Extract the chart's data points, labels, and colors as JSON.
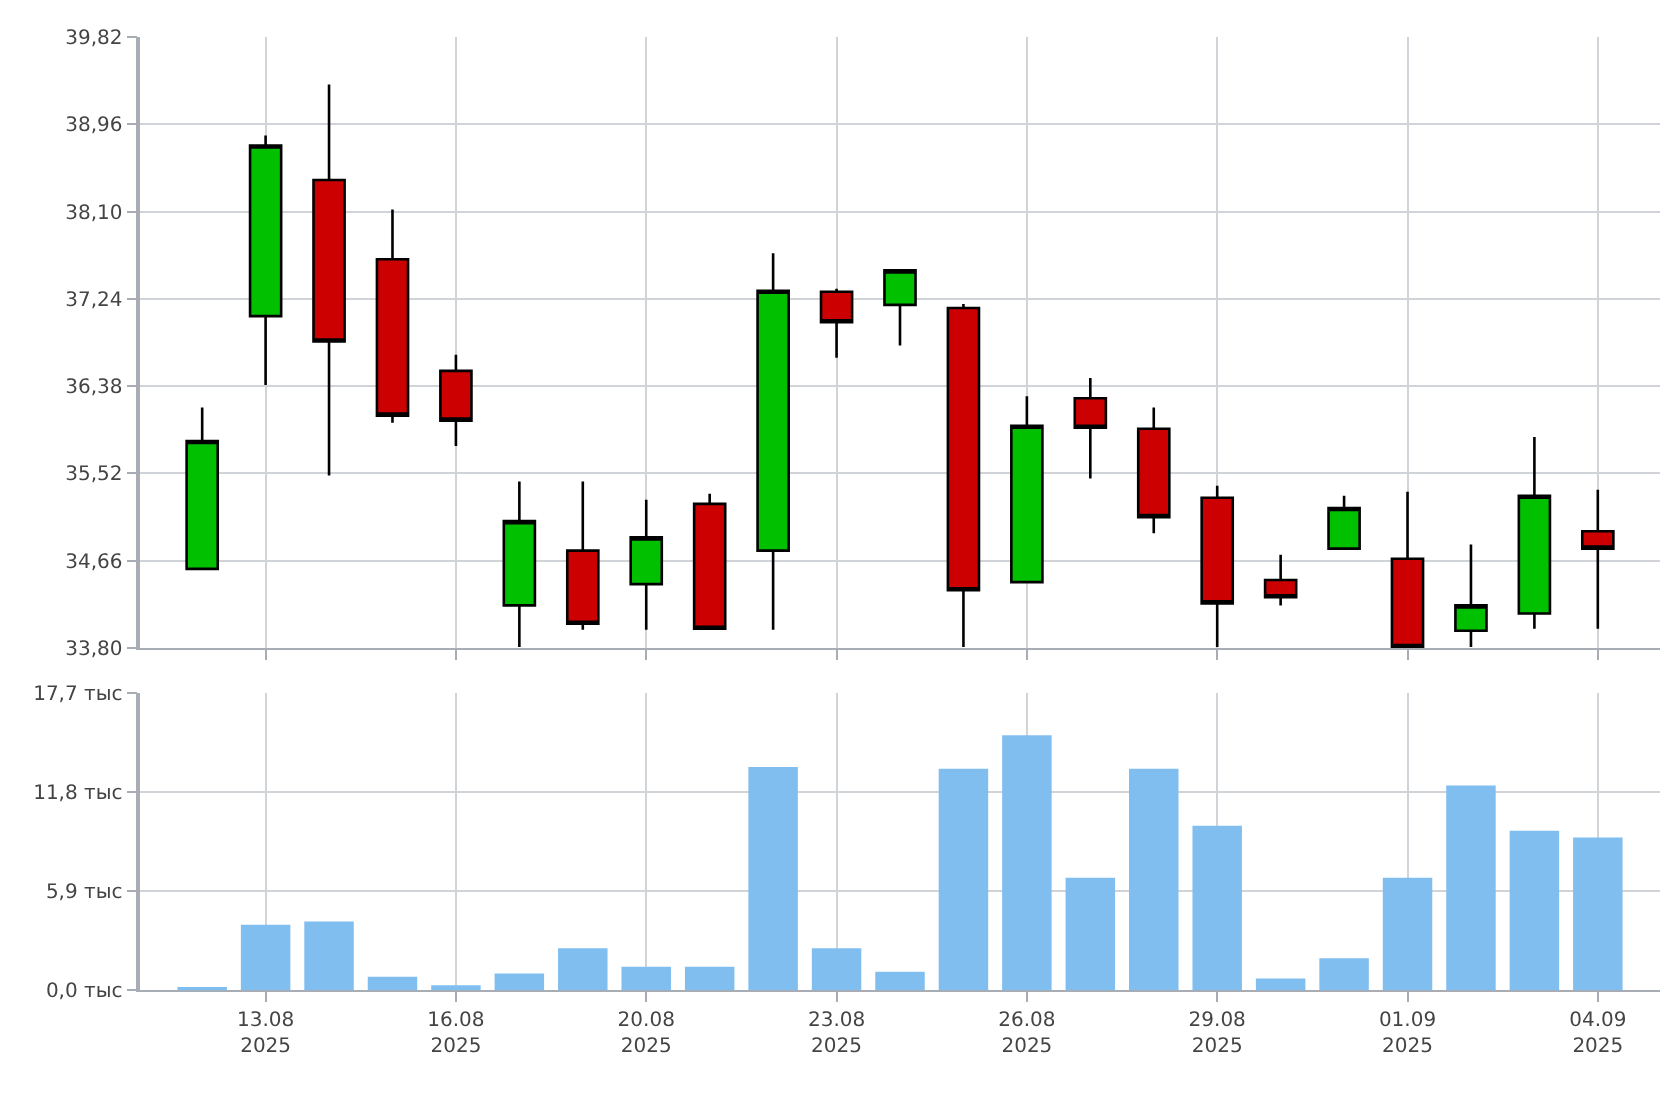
{
  "chart_data": [
    {
      "type": "candlestick",
      "ohlc": [
        [
          34.58,
          36.17,
          34.58,
          35.84
        ],
        [
          37.07,
          38.85,
          36.39,
          38.75
        ],
        [
          38.41,
          39.35,
          35.5,
          36.82
        ],
        [
          37.63,
          38.12,
          36.02,
          36.09
        ],
        [
          36.53,
          36.69,
          35.79,
          36.04
        ],
        [
          34.22,
          35.44,
          33.81,
          35.05
        ],
        [
          34.76,
          35.44,
          33.98,
          34.04
        ],
        [
          34.43,
          35.26,
          33.98,
          34.89
        ],
        [
          35.22,
          35.32,
          33.99,
          33.99
        ],
        [
          34.76,
          37.69,
          33.98,
          37.32
        ],
        [
          37.31,
          37.34,
          36.66,
          37.01
        ],
        [
          37.18,
          37.52,
          36.78,
          37.52
        ],
        [
          37.15,
          37.19,
          33.81,
          34.37
        ],
        [
          34.45,
          36.28,
          34.45,
          35.99
        ],
        [
          36.26,
          36.46,
          35.47,
          35.97
        ],
        [
          35.96,
          36.17,
          34.93,
          35.09
        ],
        [
          35.28,
          35.4,
          33.81,
          34.24
        ],
        [
          34.47,
          34.72,
          34.22,
          34.3
        ],
        [
          34.78,
          35.3,
          34.78,
          35.18
        ],
        [
          34.68,
          35.34,
          33.81,
          33.81
        ],
        [
          33.97,
          34.82,
          33.81,
          34.22
        ],
        [
          34.14,
          35.88,
          33.99,
          35.3
        ],
        [
          34.95,
          35.36,
          33.99,
          34.78
        ]
      ],
      "colors": [
        "#00c000",
        "#00c000",
        "#cc0000",
        "#cc0000",
        "#cc0000",
        "#00c000",
        "#cc0000",
        "#00c000",
        "#cc0000",
        "#00c000",
        "#cc0000",
        "#00c000",
        "#cc0000",
        "#00c000",
        "#cc0000",
        "#cc0000",
        "#cc0000",
        "#cc0000",
        "#00c000",
        "#cc0000",
        "#00c000",
        "#00c000",
        "#cc0000"
      ],
      "ylim": [
        33.8,
        39.82
      ],
      "yticks": [
        {
          "value": 33.8,
          "label": "33,80"
        },
        {
          "value": 34.66,
          "label": "34,66"
        },
        {
          "value": 35.52,
          "label": "35,52"
        },
        {
          "value": 36.38,
          "label": "36,38"
        },
        {
          "value": 37.24,
          "label": "37,24"
        },
        {
          "value": 38.1,
          "label": "38,10"
        },
        {
          "value": 38.96,
          "label": "38,96"
        },
        {
          "value": 39.82,
          "label": "39,82"
        }
      ],
      "grid": true,
      "tick_labels": "y"
    },
    {
      "type": "bar",
      "categories": [
        null,
        "13.08\n2025",
        null,
        null,
        "16.08\n2025",
        null,
        null,
        "20.08\n2025",
        null,
        null,
        "23.08\n2025",
        null,
        null,
        "26.08\n2025",
        null,
        null,
        "29.08\n2025",
        null,
        null,
        "01.09\n2025",
        null,
        null,
        "04.09\n2025"
      ],
      "values": [
        0.2,
        3.9,
        4.1,
        0.8,
        0.3,
        1.0,
        2.5,
        1.4,
        1.4,
        13.3,
        2.5,
        1.1,
        13.2,
        15.2,
        6.7,
        13.2,
        9.8,
        0.7,
        1.9,
        6.7,
        12.2,
        9.5,
        9.1
      ],
      "color": "#80bef0",
      "ylim": [
        0,
        17.7
      ],
      "yticks": [
        {
          "value": 0,
          "label": "0,0 тыс"
        },
        {
          "value": 5.9,
          "label": "5,9 тыс"
        },
        {
          "value": 11.8,
          "label": "11,8 тыс"
        },
        {
          "value": 17.7,
          "label": "17,7 тыс"
        }
      ],
      "grid": true
    }
  ]
}
